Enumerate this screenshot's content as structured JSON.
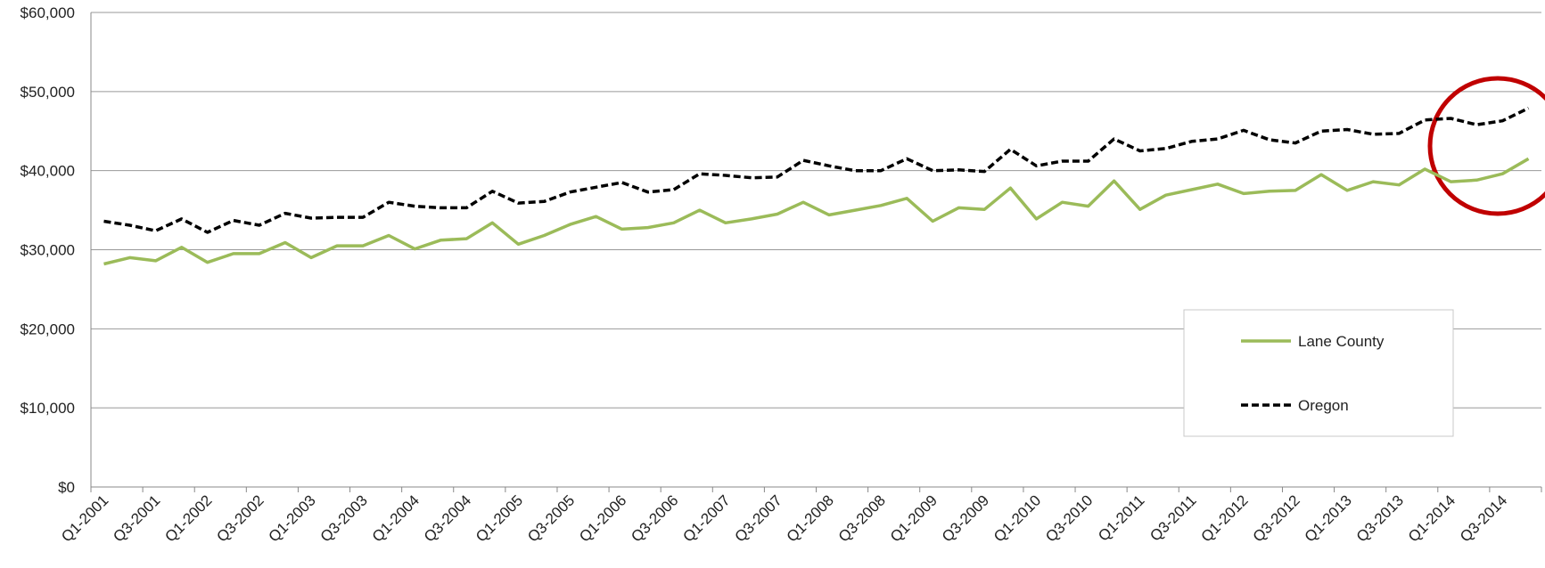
{
  "chart_data": {
    "type": "line",
    "categories": [
      "Q1-2001",
      null,
      "Q3-2001",
      null,
      "Q1-2002",
      null,
      "Q3-2002",
      null,
      "Q1-2003",
      null,
      "Q3-2003",
      null,
      "Q1-2004",
      null,
      "Q3-2004",
      null,
      "Q1-2005",
      null,
      "Q3-2005",
      null,
      "Q1-2006",
      null,
      "Q3-2006",
      null,
      "Q1-2007",
      null,
      "Q3-2007",
      null,
      "Q1-2008",
      null,
      "Q3-2008",
      null,
      "Q1-2009",
      null,
      "Q3-2009",
      null,
      "Q1-2010",
      null,
      "Q3-2010",
      null,
      "Q1-2011",
      null,
      "Q3-2011",
      null,
      "Q1-2012",
      null,
      "Q3-2012",
      null,
      "Q1-2013",
      null,
      "Q3-2013",
      null,
      "Q1-2014",
      null,
      "Q3-2014",
      null
    ],
    "series": [
      {
        "name": "Lane County",
        "color": "#9bbb59",
        "dash": false,
        "values": [
          28200,
          29000,
          28600,
          30300,
          28400,
          29500,
          29500,
          30900,
          29000,
          30500,
          30500,
          31800,
          30100,
          31200,
          31400,
          33400,
          30700,
          31800,
          33200,
          34200,
          32600,
          32800,
          33400,
          35000,
          33400,
          33900,
          34500,
          36000,
          34400,
          35000,
          35600,
          36500,
          33600,
          35300,
          35100,
          37800,
          33900,
          36000,
          35500,
          38700,
          35100,
          36900,
          37600,
          38300,
          37100,
          37400,
          37500,
          39500,
          37500,
          38600,
          38200,
          40200,
          38600,
          38800,
          39600,
          41500
        ]
      },
      {
        "name": "Oregon",
        "color": "#000000",
        "dash": true,
        "values": [
          33600,
          33100,
          32400,
          33900,
          32200,
          33700,
          33100,
          34600,
          34000,
          34100,
          34100,
          36000,
          35500,
          35300,
          35300,
          37400,
          35900,
          36100,
          37300,
          37900,
          38500,
          37300,
          37600,
          39600,
          39400,
          39100,
          39200,
          41300,
          40600,
          40000,
          40000,
          41500,
          40000,
          40100,
          39900,
          42700,
          40600,
          41200,
          41200,
          44000,
          42500,
          42800,
          43700,
          44000,
          45100,
          43900,
          43500,
          45000,
          45200,
          44600,
          44700,
          46400,
          46600,
          45800,
          46300,
          47900
        ]
      }
    ],
    "ylim": [
      0,
      60000
    ],
    "yticks": [
      {
        "value": 0,
        "label": "$0"
      },
      {
        "value": 10000,
        "label": "$10,000"
      },
      {
        "value": 20000,
        "label": "$20,000"
      },
      {
        "value": 30000,
        "label": "$30,000"
      },
      {
        "value": 40000,
        "label": "$40,000"
      },
      {
        "value": 50000,
        "label": "$50,000"
      },
      {
        "value": 60000,
        "label": "$60,000"
      }
    ],
    "grid": true
  }
}
